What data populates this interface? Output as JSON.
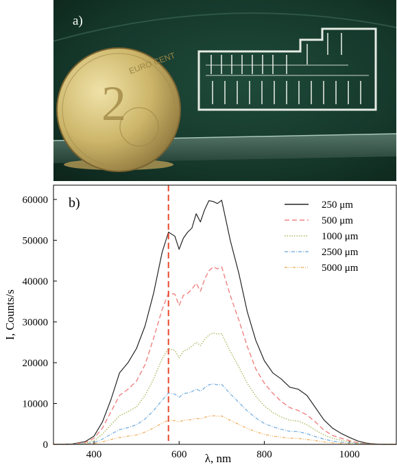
{
  "photo": {
    "panel_label": "a)",
    "coin": {
      "value_text": "2",
      "unit_text": "EURO CENT"
    }
  },
  "chart_data": {
    "type": "line",
    "panel_label": "b)",
    "xlabel": "λ, nm",
    "ylabel": "I, Counts/s",
    "xlim": [
      305,
      1110
    ],
    "ylim": [
      0,
      63500
    ],
    "xticks": [
      400,
      600,
      800,
      1000
    ],
    "yticks": [
      0,
      10000,
      20000,
      30000,
      40000,
      50000,
      60000
    ],
    "xtick_labels": [
      "400",
      "600",
      "800",
      "1000"
    ],
    "ytick_labels": [
      "0",
      "10000",
      "20000",
      "30000",
      "40000",
      "50000",
      "60000"
    ],
    "vline_x": 575,
    "vline_color": "#e8472c",
    "legend_position": "top-right",
    "x": [
      305,
      350,
      380,
      400,
      420,
      440,
      460,
      480,
      500,
      520,
      540,
      560,
      575,
      590,
      600,
      610,
      620,
      630,
      640,
      650,
      660,
      670,
      680,
      690,
      700,
      720,
      740,
      760,
      780,
      800,
      820,
      840,
      860,
      880,
      900,
      920,
      940,
      960,
      980,
      1000,
      1020,
      1040,
      1060,
      1080,
      1110
    ],
    "series": [
      {
        "name": "250 μm",
        "color": "#222222",
        "dash": "",
        "values": [
          0,
          100,
          700,
          2000,
          5500,
          11000,
          17500,
          20000,
          23500,
          29000,
          37000,
          47000,
          52000,
          51000,
          47800,
          50500,
          52000,
          53000,
          56500,
          54500,
          57500,
          59700,
          59500,
          59000,
          59800,
          50000,
          42000,
          32500,
          25500,
          20500,
          17500,
          16000,
          14000,
          13500,
          12000,
          9000,
          6000,
          4000,
          2700,
          1700,
          800,
          300,
          100,
          30,
          0
        ]
      },
      {
        "name": "500 μm",
        "color": "#f08080",
        "dash": "7,4",
        "values": [
          0,
          50,
          500,
          1500,
          4000,
          8000,
          12000,
          13500,
          15500,
          19500,
          26000,
          33000,
          37000,
          36800,
          34000,
          36500,
          37000,
          38000,
          39500,
          37500,
          40500,
          42500,
          43500,
          43000,
          43500,
          36500,
          30500,
          24000,
          18500,
          15000,
          12500,
          10500,
          9000,
          8300,
          7200,
          5500,
          3500,
          2200,
          1500,
          900,
          400,
          150,
          50,
          10,
          0
        ]
      },
      {
        "name": "1000 μm",
        "color": "#a8b860",
        "dash": "1.5,2",
        "values": [
          0,
          30,
          300,
          900,
          2500,
          4800,
          7000,
          8000,
          9200,
          12000,
          16000,
          21000,
          23500,
          23000,
          21200,
          22800,
          23300,
          24000,
          25000,
          24200,
          25700,
          26800,
          27300,
          27000,
          27100,
          22800,
          19000,
          15000,
          11800,
          9400,
          7800,
          6700,
          5900,
          5700,
          4800,
          3500,
          2300,
          1500,
          1000,
          600,
          300,
          100,
          30,
          5,
          0
        ]
      },
      {
        "name": "2500 μm",
        "color": "#7fb3e0",
        "dash": "5,2,1,2",
        "values": [
          0,
          20,
          150,
          450,
          1300,
          2500,
          3600,
          4100,
          4800,
          6200,
          8300,
          10800,
          12600,
          12300,
          11500,
          12400,
          12600,
          12900,
          13600,
          13000,
          13900,
          14600,
          14800,
          14600,
          14700,
          12400,
          10300,
          8200,
          6500,
          5100,
          4300,
          3700,
          3200,
          3100,
          2600,
          1900,
          1300,
          800,
          550,
          330,
          160,
          60,
          20,
          5,
          0
        ]
      },
      {
        "name": "5000 μm",
        "color": "#f0b060",
        "dash": "4,2,1,2,1,2",
        "values": [
          0,
          10,
          60,
          200,
          600,
          1200,
          1700,
          2000,
          2300,
          3000,
          4000,
          5200,
          5900,
          5800,
          5500,
          5900,
          6000,
          6100,
          6400,
          6200,
          6600,
          6900,
          7000,
          6900,
          6950,
          5900,
          4900,
          3900,
          3100,
          2450,
          2000,
          1750,
          1500,
          1450,
          1200,
          900,
          600,
          380,
          260,
          150,
          75,
          30,
          10,
          2,
          0
        ]
      }
    ]
  }
}
